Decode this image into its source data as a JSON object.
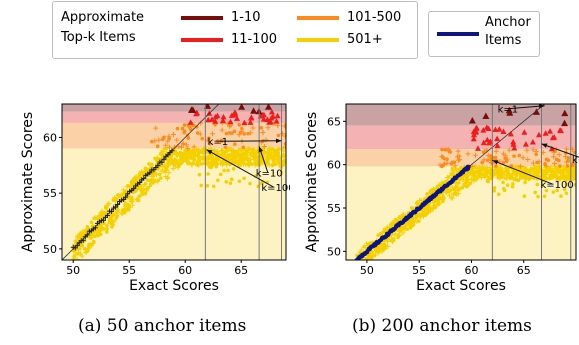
{
  "legend": {
    "title_line1": "Approximate",
    "title_line2": "Top-k Items",
    "items": [
      {
        "label": "1-10",
        "color": "#7b0c0c"
      },
      {
        "label": "11-100",
        "color": "#ee1c1c"
      },
      {
        "label": "101-500",
        "color": "#ff8a1a"
      },
      {
        "label": "501+",
        "color": "#f5d000"
      }
    ],
    "anchor": {
      "label_line1": "Anchor",
      "label_line2": "Items",
      "color": "#0d1580"
    }
  },
  "chart_data": [
    {
      "type": "scatter",
      "caption": "(a) 50 anchor items",
      "xlabel": "Exact Scores",
      "ylabel": "Approximate Scores",
      "xlim": [
        49,
        69
      ],
      "ylim": [
        49,
        63
      ],
      "xticks": [
        50,
        55,
        60,
        65
      ],
      "yticks": [
        50,
        55,
        60
      ],
      "band_thresholds": {
        "k1": 62.3,
        "k10": 61.3,
        "k100": 59.0
      },
      "vlines": [
        61.8,
        66.6,
        68.6
      ],
      "annotations": [
        {
          "label": "k=1",
          "text_at": [
            62.0,
            59.3
          ],
          "arrow_to": [
            68.6,
            59.7
          ]
        },
        {
          "label": "k=10",
          "text_at": [
            66.3,
            56.5
          ],
          "arrow_to": [
            66.6,
            59.2
          ]
        },
        {
          "label": "k=100",
          "text_at": [
            66.8,
            55.2
          ],
          "arrow_to": [
            61.9,
            58.9
          ]
        }
      ],
      "series": [
        {
          "name": "501+",
          "trend": "y≈x",
          "x_range": [
            50,
            69
          ],
          "spread": 1.2
        },
        {
          "name": "101-500",
          "x_range": [
            58,
            69
          ],
          "y_range": [
            59,
            61.3
          ]
        },
        {
          "name": "11-100",
          "x_range": [
            61,
            69
          ],
          "y_range": [
            61.3,
            62.3
          ]
        },
        {
          "name": "1-10",
          "x_range": [
            60,
            67
          ],
          "y_range": [
            62.3,
            63
          ]
        },
        {
          "name": "Anchor Items",
          "n": 50
        }
      ]
    },
    {
      "type": "scatter",
      "caption": "(b) 200 anchor items",
      "xlabel": "Exact Scores",
      "ylabel": "Approximate Scores",
      "xlim": [
        48,
        70
      ],
      "ylim": [
        49,
        67
      ],
      "xticks": [
        50,
        55,
        60,
        65
      ],
      "yticks": [
        50,
        55,
        60,
        65
      ],
      "band_thresholds": {
        "k1": 64.5,
        "k10": 61.8,
        "k100": 59.8
      },
      "vlines": [
        62.0,
        66.7,
        69.5
      ],
      "annotations": [
        {
          "label": "k=1",
          "text_at": [
            62.5,
            66.0
          ],
          "arrow_to": [
            67.0,
            66.8
          ]
        },
        {
          "label": "k=10",
          "text_at": [
            69.6,
            60.2
          ],
          "arrow_to": [
            66.7,
            62.4
          ]
        },
        {
          "label": "k=100",
          "text_at": [
            66.6,
            57.3
          ],
          "arrow_to": [
            62.0,
            60.5
          ]
        }
      ],
      "series": [
        {
          "name": "501+",
          "trend": "y≈x",
          "x_range": [
            49,
            70
          ],
          "spread": 1.0
        },
        {
          "name": "101-500",
          "x_range": [
            59,
            69
          ],
          "y_range": [
            59.8,
            61.8
          ]
        },
        {
          "name": "11-100",
          "x_range": [
            61,
            70
          ],
          "y_range": [
            61.8,
            64.5
          ]
        },
        {
          "name": "1-10",
          "x_range": [
            66,
            70
          ],
          "y_range": [
            64.5,
            67
          ]
        },
        {
          "name": "Anchor Items",
          "n": 200
        }
      ]
    }
  ]
}
